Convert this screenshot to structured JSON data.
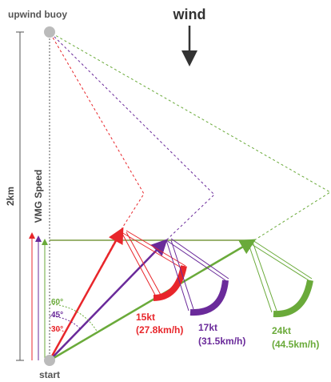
{
  "title": "wind",
  "buoy": "upwind buoy",
  "start": "start",
  "distance": "2km",
  "axis_label": "VMG Speed",
  "angles": [
    "60°",
    "45°",
    "30°"
  ],
  "boats": [
    {
      "speed": "15kt",
      "speed_kmh": "(27.8km/h)"
    },
    {
      "speed": "17kt",
      "speed_kmh": "(31.5km/h)"
    },
    {
      "speed": "24kt",
      "speed_kmh": "(44.5km/h)"
    }
  ]
}
